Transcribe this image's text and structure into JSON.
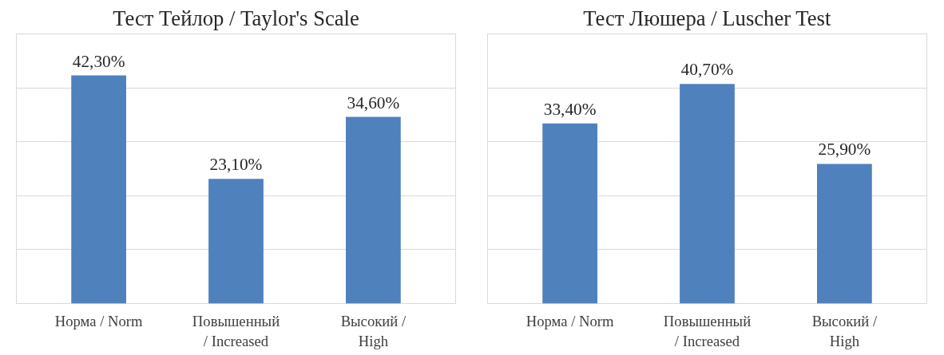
{
  "chart_data": [
    {
      "type": "bar",
      "title": "Тест Тейлор / Taylor's Scale",
      "categories": [
        "Норма / Norm",
        "Повышенный\n/ Increased",
        "Высокий /\nHigh"
      ],
      "series": [
        {
          "color": "#4f81bd",
          "values": [
            42.3,
            23.1,
            34.6
          ],
          "value_labels": [
            "42,30%",
            "23,10%",
            "34,60%"
          ]
        }
      ],
      "ylim": [
        0,
        50
      ],
      "yticks": [
        {
          "value": 0,
          "label": null
        },
        {
          "value": 10,
          "label": null
        },
        {
          "value": 20,
          "label": null
        },
        {
          "value": 30,
          "label": null
        },
        {
          "value": 40,
          "label": null
        },
        {
          "value": 50,
          "label": null
        }
      ],
      "grid": "y",
      "tick_labels": "x"
    },
    {
      "type": "bar",
      "title": "Тест Люшера / Luscher Test",
      "categories": [
        "Норма / Norm",
        "Повышенный\n/ Increased",
        "Высокий /\nHigh"
      ],
      "series": [
        {
          "color": "#4f81bd",
          "values": [
            33.4,
            40.7,
            25.9
          ],
          "value_labels": [
            "33,40%",
            "40,70%",
            "25,90%"
          ]
        }
      ],
      "ylim": [
        0,
        50
      ],
      "yticks": [
        {
          "value": 0,
          "label": null
        },
        {
          "value": 10,
          "label": null
        },
        {
          "value": 20,
          "label": null
        },
        {
          "value": 30,
          "label": null
        },
        {
          "value": 40,
          "label": null
        },
        {
          "value": 50,
          "label": null
        }
      ],
      "grid": "y",
      "tick_labels": "x"
    }
  ]
}
